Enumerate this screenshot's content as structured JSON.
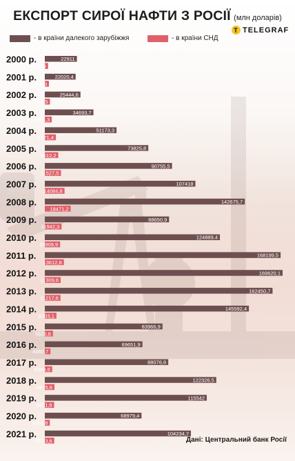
{
  "header": {
    "title": "ЕКСПОРТ СИРОЇ НАФТИ З РОСІЇ",
    "unit": "(млн доларів)",
    "logo_text": "TELEGRAF",
    "logo_mark": "T"
  },
  "colors": {
    "far_abroad": "#6e4f4f",
    "cis": "#e0606a",
    "year_text": "#111111"
  },
  "source": "Дані: Центральний банк Росії",
  "chart_data": {
    "type": "bar",
    "orientation": "horizontal",
    "title": "ЕКСПОРТ СИРОЇ НАФТИ З РОСІЇ",
    "subtitle": "(млн доларів)",
    "categories": [
      "2000 р.",
      "2001 р.",
      "2002 р.",
      "2003 р.",
      "2004 р.",
      "2005 р.",
      "2006 р.",
      "2007 р.",
      "2008 р.",
      "2009 р.",
      "2010 р.",
      "2011 р.",
      "2012 р.",
      "2013 р.",
      "2014 р.",
      "2015 р.",
      "2016 р.",
      "2017 р.",
      "2018 р.",
      "2019 р.",
      "2020 р.",
      "2021 р."
    ],
    "series": [
      {
        "name": "- в країни далекого зарубіжжя",
        "color": "#6e4f4f",
        "values": [
          22911,
          22020.4,
          25444.6,
          34693.7,
          51173.3,
          73825.8,
          90755.5,
          107418,
          142675.7,
          88650.9,
          124889.4,
          168199.5,
          169620.1,
          162450.7,
          145592.4,
          83966.9,
          69651.9,
          88076.6,
          122326.5,
          115542,
          68979.4,
          104234.7
        ],
        "labels": [
          "22911",
          "22020,4",
          "25444,6",
          "34693,7",
          "51173,3",
          "73825,8",
          "90755,5",
          "107418",
          "142675,7",
          "88650,9",
          "124889,4",
          "168199,5",
          "169620,1",
          "162450,7",
          "145592,4",
          "83966,9",
          "69651,9",
          "88076,6",
          "122326,5",
          "115542",
          "68979,4",
          "104234,7"
        ]
      },
      {
        "name": "- в країни СНД",
        "color": "#e0606a",
        "values": [
          2360.9,
          2969.9,
          3668.5,
          4985.3,
          7871.4,
          9612.2,
          11527.5,
          14084.8,
          18471.2,
          11942.3,
          10909.9,
          13612.8,
          11309.6,
          11217.6,
          8303.1,
          5820.8,
          4060.7,
          5300.6,
          6875.6,
          6661.6,
          3584.8,
          6733.6
        ],
        "labels": [
          "2360,9",
          "2969,9",
          "3668,5",
          "4985,3",
          "7871,4",
          "9612,2",
          "11527,5",
          "14084,8",
          "18471,2",
          "11942,3",
          "10909,9",
          "13612,8",
          "11309,6",
          "11217,6",
          "8303,1",
          "5820,8",
          "4060,7",
          "5300,6",
          "6875,6",
          "6661,6",
          "3584,8",
          "6733,6"
        ]
      }
    ],
    "grid": false,
    "legend": "top"
  }
}
